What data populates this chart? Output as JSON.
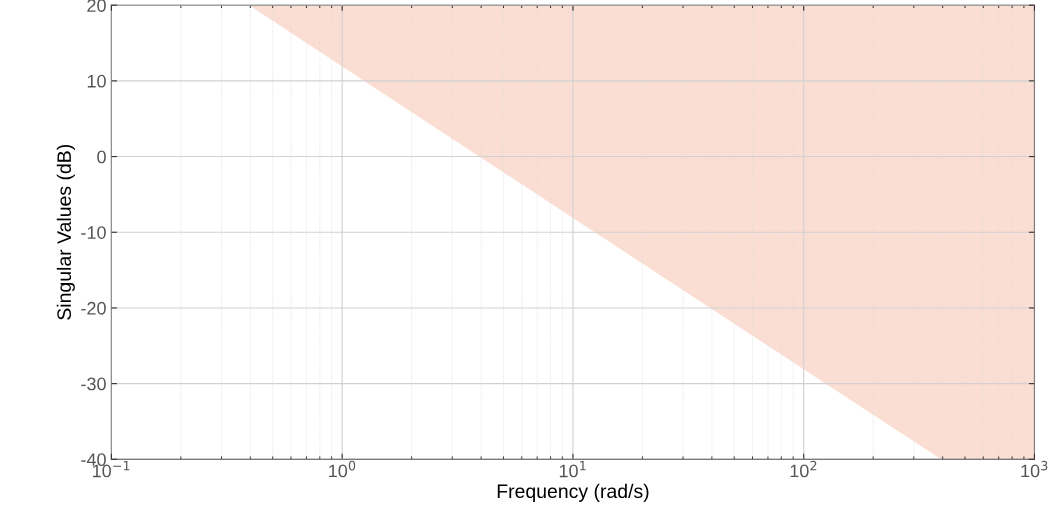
{
  "chart_data": {
    "type": "area",
    "xlabel": "Frequency (rad/s)",
    "ylabel": "Singular Values (dB)",
    "log": "x",
    "xlim": [
      0.1,
      1000
    ],
    "ylim": [
      -40,
      20
    ],
    "xticks": [
      {
        "value": 0.1,
        "label": "10$^{−1}$"
      },
      {
        "value": 1,
        "label": "10$^{0}$"
      },
      {
        "value": 10,
        "label": "10$^{1}$"
      },
      {
        "value": 100,
        "label": "10$^{2}$"
      },
      {
        "value": 1000,
        "label": "10$^{3}$"
      }
    ],
    "yticks": [
      -40,
      -30,
      -20,
      -10,
      0,
      10,
      20
    ],
    "grid": true,
    "series": [
      {
        "color": "#fbded3",
        "x": [
          0.4,
          1,
          10,
          100,
          400,
          1000
        ],
        "values": [
          20,
          12,
          -8,
          -28,
          -40,
          -40
        ]
      }
    ]
  }
}
